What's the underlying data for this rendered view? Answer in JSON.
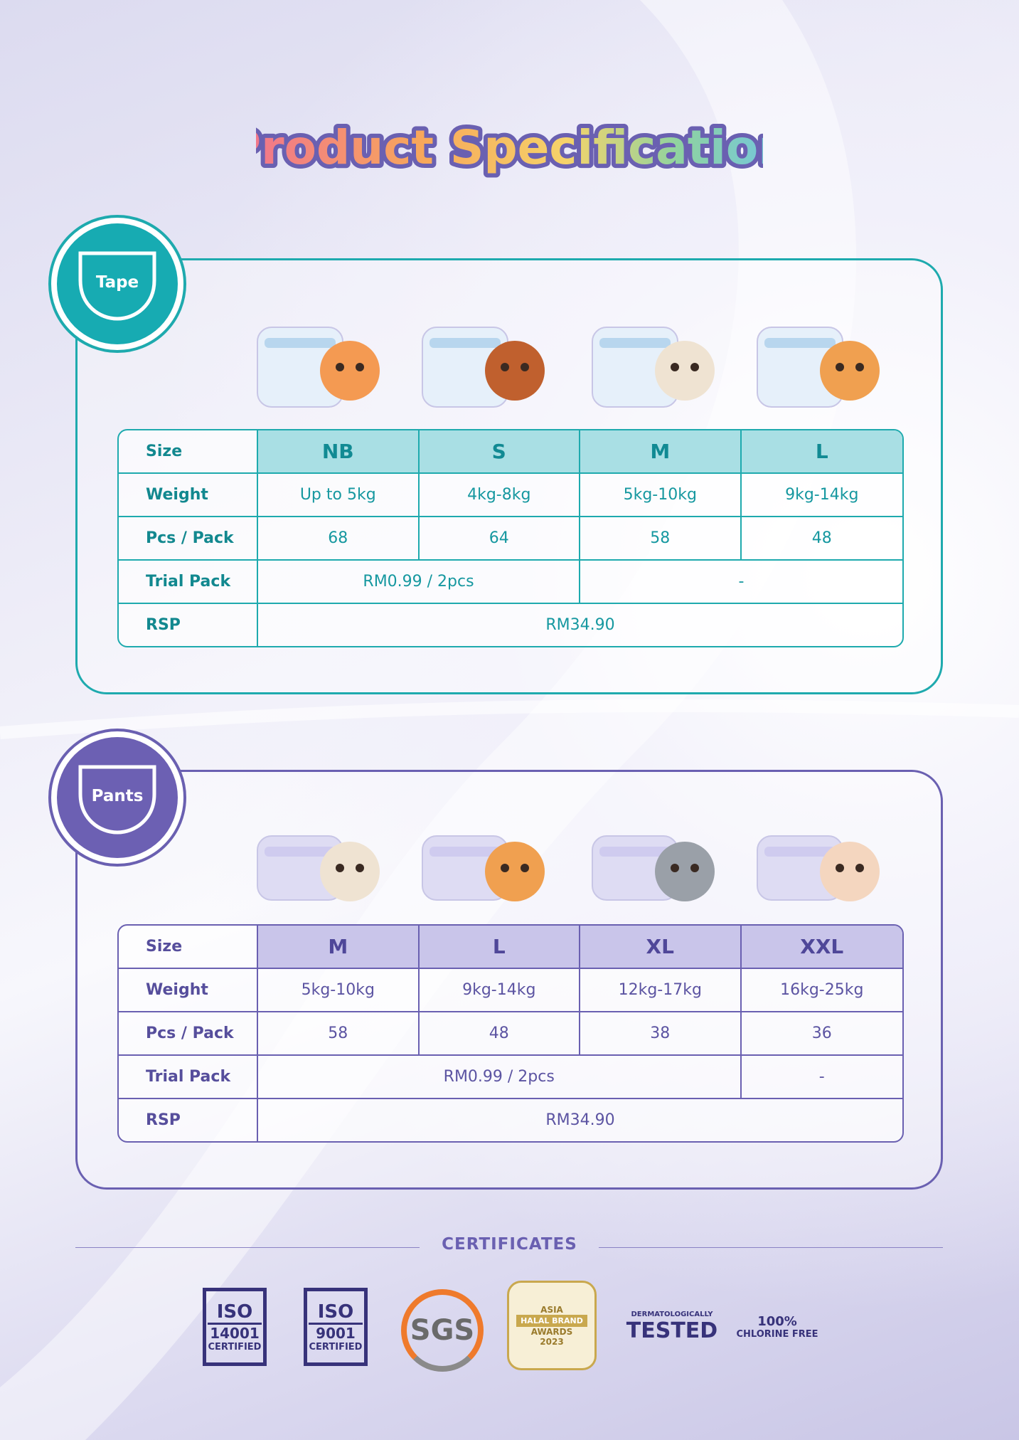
{
  "title": "Product Specification",
  "sections": [
    {
      "label": "Tape",
      "header": {
        "label": "Size",
        "cells": [
          "NB",
          "S",
          "M",
          "L"
        ]
      },
      "rows": [
        {
          "label": "Weight",
          "cells": [
            "Up to 5kg",
            "4kg-8kg",
            "5kg-10kg",
            "9kg-14kg"
          ]
        },
        {
          "label": "Pcs / Pack",
          "cells": [
            "68",
            "64",
            "58",
            "48"
          ]
        },
        {
          "label": "Trial Pack",
          "cells": [
            "RM0.99 / 2pcs",
            "-"
          ]
        },
        {
          "label": "RSP",
          "cells": [
            "RM34.90"
          ]
        }
      ]
    },
    {
      "label": "Pants",
      "header": {
        "label": "Size",
        "cells": [
          "M",
          "L",
          "XL",
          "XXL"
        ]
      },
      "rows": [
        {
          "label": "Weight",
          "cells": [
            "5kg-10kg",
            "9kg-14kg",
            "12kg-17kg",
            "16kg-25kg"
          ]
        },
        {
          "label": "Pcs / Pack",
          "cells": [
            "58",
            "48",
            "38",
            "36"
          ]
        },
        {
          "label": "Trial Pack",
          "cells": [
            "RM0.99 / 2pcs",
            "-"
          ]
        },
        {
          "label": "RSP",
          "cells": [
            "RM34.90"
          ]
        }
      ]
    }
  ],
  "certificates": {
    "title": "CERTIFICATES",
    "items": [
      {
        "lines": [
          "ISO",
          "14001",
          "CERTIFIED"
        ]
      },
      {
        "lines": [
          "ISO",
          "9001",
          "CERTIFIED"
        ]
      },
      {
        "lines": [
          "SGS"
        ]
      },
      {
        "lines": [
          "ASIA",
          "HALAL BRAND",
          "AWARDS",
          "2023"
        ]
      },
      {
        "lines": [
          "DERMATOLOGICALLY",
          "TESTED"
        ]
      },
      {
        "lines": [
          "100%",
          "CHLORINE FREE"
        ]
      }
    ]
  }
}
